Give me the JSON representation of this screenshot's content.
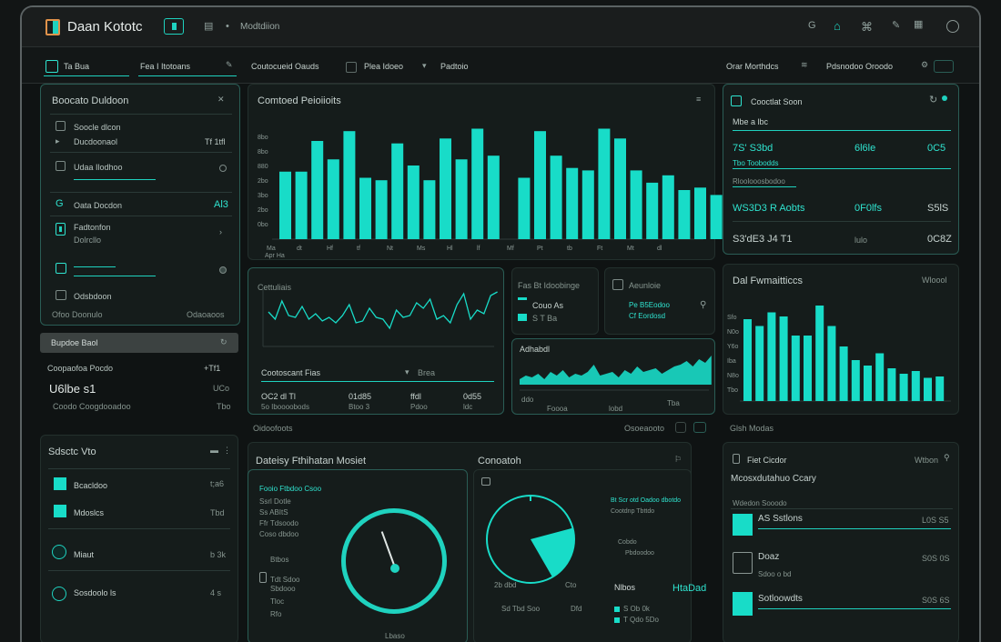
{
  "app": {
    "title": "Daan Kototc",
    "breadcrumb": "Modtdiion"
  },
  "toolbar": {
    "tab1": "Ta Bua",
    "tab2": "Fea I Itotoans",
    "center_label": "Coutocueid Oauds",
    "center_tab2": "Plea Idoeo",
    "center_tab3": "Padtoio",
    "right_label1": "Orar Morthdcs",
    "right_label2": "Pdsnodoo Oroodo"
  },
  "sidebar": {
    "panel_title": "Boocato Duldoon",
    "items": [
      {
        "label": "Soocle dlcon",
        "value": ""
      },
      {
        "label": "Ducdoonaol",
        "value": "Tf 1tfl"
      },
      {
        "label": "Udaa Ilodhoo",
        "value": ""
      },
      {
        "label": "Oata Docdon",
        "value": "Al3"
      },
      {
        "label": "Fadtonfon",
        "value": ""
      },
      {
        "label": "Dolrcllo",
        "value": ""
      },
      {
        "label": "Odsbdoon",
        "value": ""
      }
    ],
    "footer_left": "Ofoo Doonulo",
    "footer_right": "Odaoaoos",
    "selected": "Bupdoe Baol",
    "stat_label": "Coopaofoa Pocdo",
    "stat_value_label": "+Tf1",
    "big_value": "U6lbe s1",
    "big_side": "UCo",
    "sub_label": "Coodo Coogdooadoo",
    "sub_side": "Tbo",
    "section2_title": "Sdsctc Vto",
    "section2_items": [
      {
        "label": "Bcacldoo",
        "value": "t;a6"
      },
      {
        "label": "Mdoslcs",
        "value": "Tbd"
      },
      {
        "label": "Miaut",
        "value": "b 3k"
      },
      {
        "label": "Sosdoolo ls",
        "value": "4 s"
      }
    ]
  },
  "bar_panel": {
    "title": "Comtoed Peioiioits",
    "x_ticks": [
      "Ma",
      "dt",
      "Hf",
      "tf",
      "Nt",
      "Ms",
      "Hl",
      "lf",
      "Mf",
      "Pt",
      "tb",
      "Ft",
      "Mt",
      "dl"
    ],
    "label": "Apr Ha"
  },
  "line_panel": {
    "title": "Cettuliais",
    "foot_label": "Cootoscant Fias",
    "foot_right": "Brea",
    "stats": [
      {
        "label": "OC2 dl Tl",
        "value": "01d85"
      },
      {
        "label": "5o Iboooobods",
        "value": "Btoo 3"
      },
      {
        "label": "ffdl",
        "value": "0d55"
      },
      {
        "label": "Pdoo",
        "value": "ldc"
      }
    ]
  },
  "mini_panel1": {
    "title": "Fas Bt Idoobinge",
    "row1": "Couo As",
    "row2": "S T Ba"
  },
  "mini_panel2": {
    "title": "Aeunloie",
    "rows": [
      "Pe B5Eodoo",
      "Cf Eordosd"
    ]
  },
  "area_panel": {
    "title": "Adhabdl",
    "legend": [
      "ddo",
      "Foooa",
      "lobd",
      "Tba"
    ]
  },
  "right_top": {
    "title": "Cooctlat Soon",
    "subtitle": "Mbe a lbc",
    "row1": {
      "value": "7S' S3bd",
      "mid": "6l6le",
      "right": "0C5"
    },
    "row1_label": "Tbo Toobodds",
    "row2_label": "Rloolooosbodoo",
    "row2": {
      "value": "WS3D3 R Aobts",
      "mid": "0F0lfs",
      "right": "S5lS"
    },
    "row3": {
      "value": "S3'dE3 J4 T1",
      "mid": "lulo",
      "right": "0C8Z"
    }
  },
  "right_bar": {
    "title": "Dal Fwmaitticcs",
    "tag": "Wloool"
  },
  "bottom_mid": {
    "header_left": "Oidoofoots",
    "header_right": "Osoeaooto"
  },
  "gauge_panel": {
    "title": "Dateisy Fthihatan Mosiet",
    "lines": [
      "Fooio Ftbdoo Csoo",
      "Ssrl Dotle",
      "Ss ABItS",
      "Ffr Tdsoodo",
      "Coso dbdoo"
    ],
    "list": [
      "Btbos",
      "Tdt Sdoo",
      "Sbdooo",
      "Tloc",
      "Rfo"
    ],
    "label": "Lbaso"
  },
  "pie_panel": {
    "title": "Conoatoh",
    "lines": [
      "Bt Scr otd Oadoo dbotdo",
      "Cootdnp Tbttdo",
      "Cobdo",
      "Pbdoodoo"
    ],
    "legend": [
      "Sd Tbd Soo",
      "Dfd"
    ],
    "footer_left": "Nlbos",
    "footer_right": "HtaDad",
    "footer_rows": [
      "S Ob 0k",
      "T Qdo 5Do"
    ],
    "gauge_label": "2b dbd",
    "other_label": "Cto"
  },
  "right_bottom": {
    "header": "Glsh Modas",
    "title": "Fiet Cicdor",
    "tag": "Wtbon",
    "subtitle": "Mcosxdutahuo Ccary",
    "sub2": "Wdedon Sooodo",
    "items": [
      {
        "label": "AS Sstlons",
        "value": "L0S S5"
      },
      {
        "label": "Doaz",
        "value": "S0S 0S"
      },
      {
        "label": "Sotloowdts",
        "value": "S0S 6S"
      }
    ],
    "item2_sub": "Sdoo o bd"
  },
  "colors": {
    "accent": "#18dcc8",
    "panel": "#151c1b",
    "bg": "#0f1313"
  }
}
